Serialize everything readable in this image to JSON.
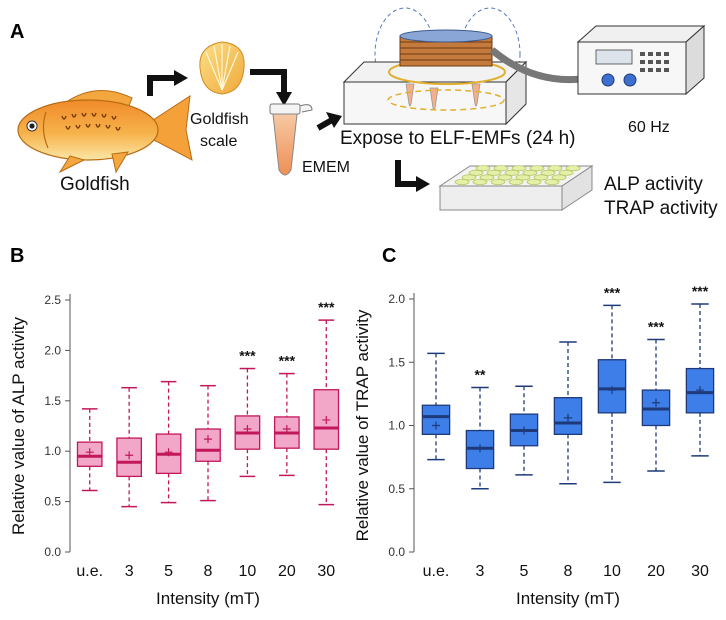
{
  "panel_a": {
    "letter": "A",
    "goldfish_label": "Goldfish",
    "scale_label_line1": "Goldfish",
    "scale_label_line2": "scale",
    "medium_label": "EMEM",
    "expose_label": "Expose to ELF-EMFs (24 h)",
    "frequency_label": "60 Hz",
    "assay1_label": "ALP activity",
    "assay2_label": "TRAP activity"
  },
  "colors": {
    "alp": "#c2185b",
    "alp_fill": "#f2a6c8",
    "trap": "#1f3a7a",
    "trap_fill": "#3d7ee8"
  },
  "chart_data": [
    {
      "id": "B",
      "letter": "B",
      "type": "box",
      "ylabel": "Relative value of ALP activity",
      "xlabel": "Intensity (mT)",
      "ylim": [
        0,
        2.5
      ],
      "yticks": [
        "0.0",
        "0.5",
        "1.0",
        "1.5",
        "2.0",
        "2.5"
      ],
      "categories": [
        "u.e.",
        "3",
        "5",
        "8",
        "10",
        "20",
        "30"
      ],
      "boxes": [
        {
          "min": 0.61,
          "q1": 0.85,
          "median": 0.95,
          "q3": 1.09,
          "max": 1.42,
          "mean": 0.99,
          "sig": ""
        },
        {
          "min": 0.45,
          "q1": 0.75,
          "median": 0.89,
          "q3": 1.13,
          "max": 1.63,
          "mean": 0.96,
          "sig": ""
        },
        {
          "min": 0.49,
          "q1": 0.78,
          "median": 0.97,
          "q3": 1.17,
          "max": 1.69,
          "mean": 0.99,
          "sig": ""
        },
        {
          "min": 0.51,
          "q1": 0.9,
          "median": 1.01,
          "q3": 1.22,
          "max": 1.65,
          "mean": 1.12,
          "sig": ""
        },
        {
          "min": 0.75,
          "q1": 1.02,
          "median": 1.18,
          "q3": 1.35,
          "max": 1.82,
          "mean": 1.22,
          "sig": "***"
        },
        {
          "min": 0.76,
          "q1": 1.03,
          "median": 1.18,
          "q3": 1.34,
          "max": 1.77,
          "mean": 1.22,
          "sig": "***"
        },
        {
          "min": 0.47,
          "q1": 1.02,
          "median": 1.23,
          "q3": 1.61,
          "max": 2.3,
          "mean": 1.31,
          "sig": "***"
        }
      ]
    },
    {
      "id": "C",
      "letter": "C",
      "type": "box",
      "ylabel": "Relative value of TRAP activity",
      "xlabel": "Intensity (mT)",
      "ylim": [
        0,
        2.0
      ],
      "yticks": [
        "0.0",
        "0.5",
        "1.0",
        "1.5",
        "2.0"
      ],
      "categories": [
        "u.e.",
        "3",
        "5",
        "8",
        "10",
        "20",
        "30"
      ],
      "boxes": [
        {
          "min": 0.73,
          "q1": 0.93,
          "median": 1.07,
          "q3": 1.16,
          "max": 1.57,
          "mean": 1.0,
          "sig": ""
        },
        {
          "min": 0.5,
          "q1": 0.66,
          "median": 0.82,
          "q3": 0.96,
          "max": 1.3,
          "mean": 0.82,
          "sig": "**"
        },
        {
          "min": 0.61,
          "q1": 0.84,
          "median": 0.96,
          "q3": 1.09,
          "max": 1.31,
          "mean": 0.96,
          "sig": ""
        },
        {
          "min": 0.54,
          "q1": 0.93,
          "median": 1.02,
          "q3": 1.22,
          "max": 1.66,
          "mean": 1.06,
          "sig": ""
        },
        {
          "min": 0.55,
          "q1": 1.1,
          "median": 1.29,
          "q3": 1.52,
          "max": 1.95,
          "mean": 1.28,
          "sig": "***"
        },
        {
          "min": 0.64,
          "q1": 1.0,
          "median": 1.13,
          "q3": 1.28,
          "max": 1.68,
          "mean": 1.18,
          "sig": "***"
        },
        {
          "min": 0.76,
          "q1": 1.1,
          "median": 1.26,
          "q3": 1.45,
          "max": 1.96,
          "mean": 1.28,
          "sig": "***"
        }
      ]
    }
  ]
}
